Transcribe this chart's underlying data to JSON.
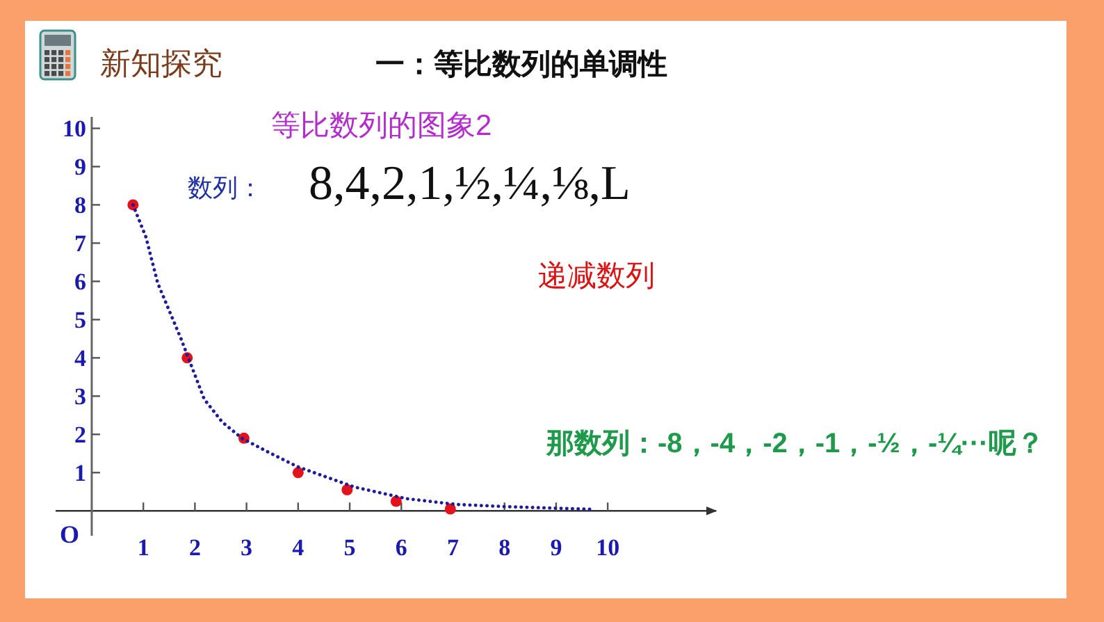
{
  "chart_data": {
    "type": "scatter",
    "title": "一：等比数列的单调性",
    "subtitle": "等比数列的图象2",
    "annotations": [
      "新知探究",
      "数列：",
      "8,4,2,1,½,¼,⅛,L",
      "递减数列",
      "那数列：-8，-4，-2，-1，-½，-¼···呢？",
      "O"
    ],
    "series": [
      {
        "type": "scatter",
        "color": "#e5121b",
        "x": [
          0.8,
          1.85,
          2.95,
          4,
          4.95,
          5.9,
          6.95
        ],
        "values": [
          8,
          4,
          1.9,
          1,
          0.55,
          0.25,
          0.05
        ]
      },
      {
        "type": "line",
        "color": "#1c1c9c",
        "marker": "none",
        "x": [
          0.8,
          1.05,
          1.28,
          1.73,
          2.18,
          2.53,
          2.92,
          3.43,
          3.98,
          5.1,
          6.1,
          7.05,
          8.04,
          9.7
        ],
        "values": [
          8,
          7.16,
          5.95,
          4.5,
          2.92,
          2.32,
          1.89,
          1.53,
          1.16,
          0.62,
          0.32,
          0.17,
          0.11,
          0.04
        ]
      }
    ],
    "xlim": [
      -0.7,
      12.1
    ],
    "ylim": [
      -0.65,
      10.3
    ],
    "xticks": [
      1,
      2,
      3,
      4,
      5,
      6,
      7,
      8,
      9,
      10
    ],
    "yticks": [
      1,
      2,
      3,
      4,
      5,
      6,
      7,
      8,
      9,
      10
    ],
    "marker": "circle",
    "line_style": "dotted"
  }
}
